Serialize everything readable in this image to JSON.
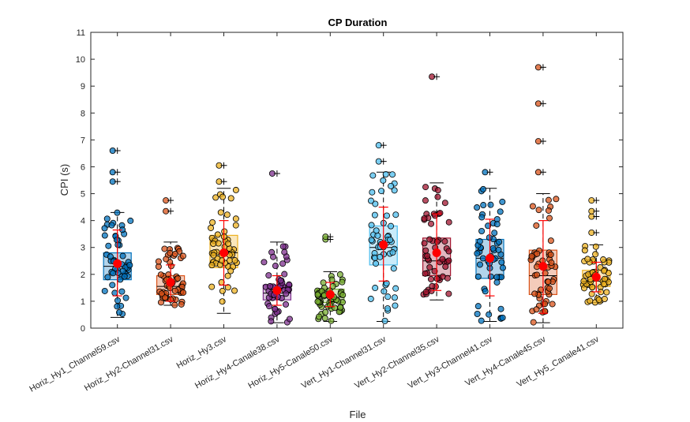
{
  "chart_data": {
    "type": "box",
    "title": "CP Duration",
    "xlabel": "File",
    "ylabel": "CPI (s)",
    "ylim": [
      0,
      11
    ],
    "yticks": [
      0,
      1,
      2,
      3,
      4,
      5,
      6,
      7,
      8,
      9,
      10,
      11
    ],
    "grid": false,
    "categories": [
      "Horiz_Hy1_Channel59.csv",
      "Horiz_Hy2-Channel31.csv",
      "Horiz_Hy3.csv",
      "Horiz_Hy4-Canale38.csv",
      "Horiz_Hy5-Canale50.csv",
      "Vert_Hy1-Channel31.csv",
      "Vert_Hy2-Channel35.csv",
      "Vert_Hy3-Channel41.csv",
      "Vert_Hy4-Canale45.csv",
      "Vert_Hy5_Canale41.csv"
    ],
    "box_colors": [
      "#0072BD",
      "#D95319",
      "#EDB120",
      "#7E2F8E",
      "#77AC30",
      "#4DBEEE",
      "#A2142F",
      "#0072BD",
      "#D95319",
      "#EDB120"
    ],
    "mean_color": "#FF0000",
    "boxes": [
      {
        "q1": 1.8,
        "median": 2.3,
        "q3": 2.8,
        "whisker_low": 0.4,
        "whisker_high": 4.3,
        "mean": 2.4,
        "mean_low": 1.2,
        "mean_high": 3.65,
        "outliers": [
          5.8,
          5.45,
          6.6
        ]
      },
      {
        "q1": 1.25,
        "median": 1.55,
        "q3": 1.95,
        "whisker_low": 0.85,
        "whisker_high": 3.2,
        "mean": 1.7,
        "mean_low": 1.0,
        "mean_high": 2.35,
        "outliers": [
          4.35,
          4.75
        ]
      },
      {
        "q1": 2.25,
        "median": 2.8,
        "q3": 3.45,
        "whisker_low": 0.55,
        "whisker_high": 5.2,
        "mean": 2.8,
        "mean_low": 1.6,
        "mean_high": 4.0,
        "outliers": [
          5.45,
          6.05
        ]
      },
      {
        "q1": 1.05,
        "median": 1.3,
        "q3": 1.6,
        "whisker_low": 0.2,
        "whisker_high": 3.2,
        "mean": 1.4,
        "mean_low": 0.85,
        "mean_high": 1.95,
        "outliers": [
          5.75
        ]
      },
      {
        "q1": 0.95,
        "median": 1.15,
        "q3": 1.45,
        "whisker_low": 0.25,
        "whisker_high": 2.1,
        "mean": 1.25,
        "mean_low": 0.8,
        "mean_high": 1.7,
        "outliers": [
          3.3,
          3.4
        ]
      },
      {
        "q1": 2.35,
        "median": 3.0,
        "q3": 3.8,
        "whisker_low": 0.25,
        "whisker_high": 5.8,
        "mean": 3.1,
        "mean_low": 1.75,
        "mean_high": 4.5,
        "outliers": [
          6.2,
          6.8
        ]
      },
      {
        "q1": 1.95,
        "median": 2.5,
        "q3": 3.35,
        "whisker_low": 1.05,
        "whisker_high": 5.4,
        "mean": 2.8,
        "mean_low": 1.4,
        "mean_high": 4.25,
        "outliers": [
          9.35
        ]
      },
      {
        "q1": 1.85,
        "median": 2.6,
        "q3": 3.3,
        "whisker_low": 0.25,
        "whisker_high": 5.2,
        "mean": 2.6,
        "mean_low": 1.2,
        "mean_high": 4.05,
        "outliers": [
          5.8
        ]
      },
      {
        "q1": 1.25,
        "median": 1.95,
        "q3": 2.9,
        "whisker_low": 0.2,
        "whisker_high": 5.0,
        "mean": 2.3,
        "mean_low": 0.55,
        "mean_high": 4.0,
        "outliers": [
          5.8,
          6.95,
          8.35,
          9.7
        ]
      },
      {
        "q1": 1.55,
        "median": 1.75,
        "q3": 2.15,
        "whisker_low": 0.95,
        "whisker_high": 3.1,
        "mean": 1.9,
        "mean_low": 1.35,
        "mean_high": 2.45,
        "outliers": [
          3.55,
          4.15,
          4.35,
          4.75
        ]
      }
    ]
  }
}
